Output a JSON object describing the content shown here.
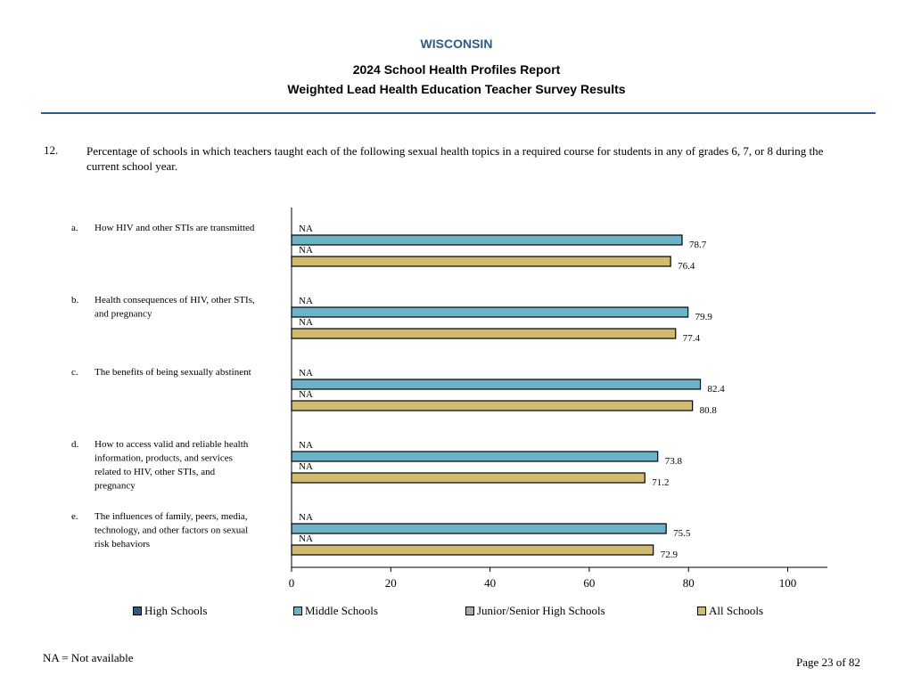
{
  "header": {
    "state": "WISCONSIN",
    "report_title": "2024 School Health Profiles Report",
    "survey_title": "Weighted Lead Health Education Teacher Survey Results"
  },
  "question": {
    "number": "12.",
    "text": "Percentage of schools in which teachers taught each of the following sexual health topics in a required course for students in any of grades 6, 7, or 8 during the current school year."
  },
  "colors": {
    "High Schools": "#2e5b8a",
    "Middle Schools": "#6cb2c8",
    "Junior/Senior High Schools": "#a9a9a9",
    "All Schools": "#d2bb6e"
  },
  "chart_data": {
    "type": "bar",
    "orientation": "horizontal",
    "categories": [
      {
        "letter": "a.",
        "label": "How HIV and other STIs are transmitted"
      },
      {
        "letter": "b.",
        "label": "Health consequences of HIV, other STIs, and pregnancy"
      },
      {
        "letter": "c.",
        "label": "The benefits of being sexually abstinent"
      },
      {
        "letter": "d.",
        "label": "How to access valid and reliable health information, products, and services related to HIV, other STIs, and pregnancy"
      },
      {
        "letter": "e.",
        "label": "The influences of family, peers, media, technology, and other factors on sexual risk behaviors"
      }
    ],
    "series": [
      {
        "name": "High Schools",
        "values": [
          "NA",
          "NA",
          "NA",
          "NA",
          "NA"
        ]
      },
      {
        "name": "Middle Schools",
        "values": [
          78.7,
          79.9,
          82.4,
          73.8,
          75.5
        ]
      },
      {
        "name": "Junior/Senior High Schools",
        "values": [
          "NA",
          "NA",
          "NA",
          "NA",
          "NA"
        ]
      },
      {
        "name": "All Schools",
        "values": [
          76.4,
          77.4,
          80.8,
          71.2,
          72.9
        ]
      }
    ],
    "xlim": [
      0,
      108
    ],
    "xticks": [
      0,
      20,
      40,
      60,
      80,
      100
    ],
    "legend_position": "bottom"
  },
  "footer": {
    "na_note": "NA = Not available",
    "page": "Page 23 of 82"
  }
}
